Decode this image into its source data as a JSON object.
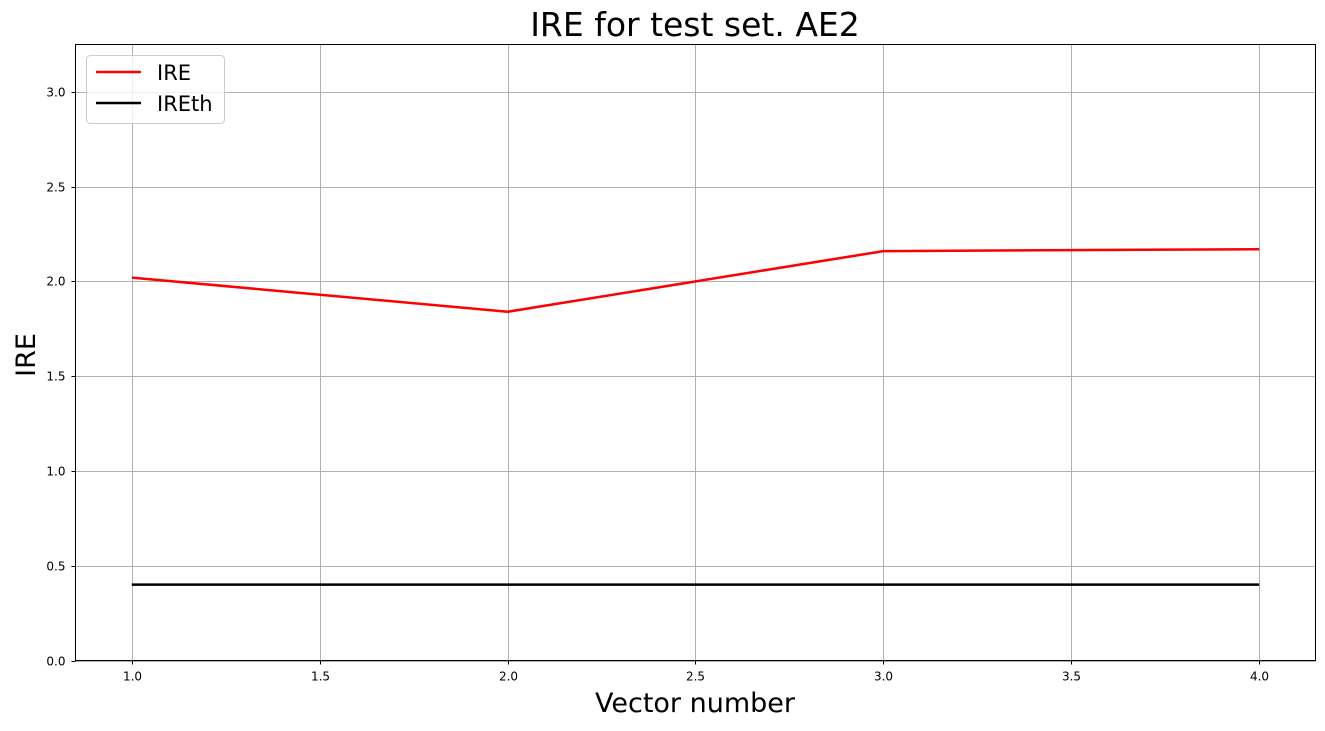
{
  "chart_data": {
    "type": "line",
    "title": "IRE for test set. AE2",
    "xlabel": "Vector number",
    "ylabel": "IRE",
    "xlim": [
      0.85,
      4.15
    ],
    "ylim": [
      0,
      3.25
    ],
    "xticks": [
      1.0,
      1.5,
      2.0,
      2.5,
      3.0,
      3.5,
      4.0
    ],
    "xtick_labels": [
      "1.0",
      "1.5",
      "2.0",
      "2.5",
      "3.0",
      "3.5",
      "4.0"
    ],
    "yticks": [
      0.0,
      0.5,
      1.0,
      1.5,
      2.0,
      2.5,
      3.0
    ],
    "ytick_labels": [
      "0.0",
      "0.5",
      "1.0",
      "1.5",
      "2.0",
      "2.5",
      "3.0"
    ],
    "grid": true,
    "legend_position": "top-left",
    "x": [
      1,
      2,
      3,
      4
    ],
    "series": [
      {
        "name": "IRE",
        "values": [
          2.02,
          1.84,
          2.16,
          2.17
        ],
        "color": "#ff0000"
      },
      {
        "name": "IREth",
        "values": [
          0.4,
          0.4,
          0.4,
          0.4
        ],
        "color": "#000000"
      }
    ]
  }
}
